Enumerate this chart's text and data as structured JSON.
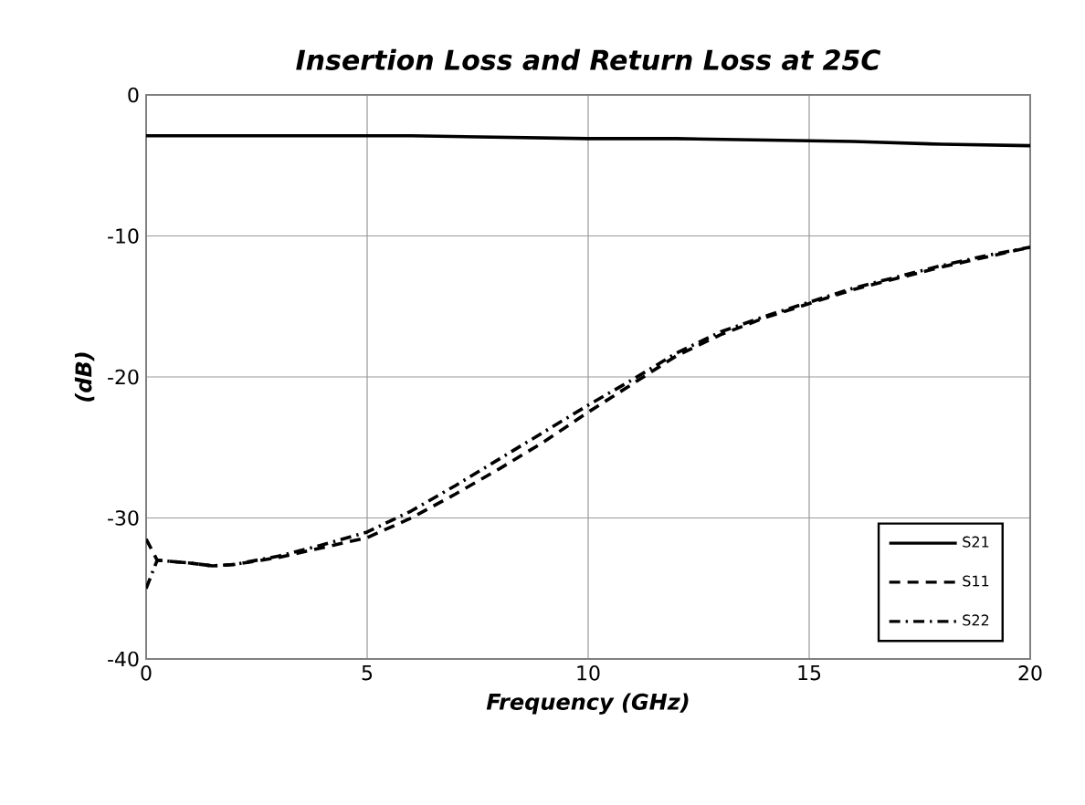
{
  "chart_data": {
    "type": "line",
    "title": "Insertion Loss and Return Loss at 25C",
    "xlabel": "Frequency (GHz)",
    "ylabel": "(dB)",
    "xlim": [
      0,
      20
    ],
    "ylim": [
      -40,
      0
    ],
    "xticks": [
      0,
      5,
      10,
      15,
      20
    ],
    "yticks": [
      -40,
      -30,
      -20,
      -10,
      0
    ],
    "grid": true,
    "legend": "bottom right",
    "series": [
      {
        "name": "S21",
        "color": "#000000",
        "line_style": "solid",
        "x": [
          0,
          2,
          4,
          6,
          8,
          10,
          12,
          14,
          16,
          18,
          20
        ],
        "values": [
          -2.9,
          -2.9,
          -2.9,
          -2.9,
          -3.0,
          -3.1,
          -3.1,
          -3.2,
          -3.3,
          -3.5,
          -3.6
        ]
      },
      {
        "name": "S11",
        "color": "#000000",
        "line_style": "dashed",
        "x": [
          0,
          0.25,
          1,
          1.5,
          2,
          3,
          4,
          5,
          6,
          7,
          8,
          9,
          10,
          11,
          12,
          13,
          14,
          15,
          16,
          17,
          18,
          19,
          20
        ],
        "values": [
          -31.5,
          -33,
          -33.2,
          -33.4,
          -33.3,
          -32.8,
          -32.1,
          -31.4,
          -30,
          -28.3,
          -26.5,
          -24.6,
          -22.5,
          -20.5,
          -18.5,
          -17,
          -15.8,
          -14.8,
          -13.8,
          -13,
          -12.2,
          -11.5,
          -10.8
        ]
      },
      {
        "name": "S22",
        "color": "#000000",
        "line_style": "dashdot",
        "x": [
          0,
          0.25,
          1,
          1.5,
          2,
          3,
          4,
          5,
          6,
          7,
          8,
          9,
          10,
          11,
          12,
          13,
          14,
          15,
          16,
          17,
          18,
          19,
          20
        ],
        "values": [
          -35,
          -33,
          -33.2,
          -33.4,
          -33.3,
          -32.7,
          -31.9,
          -31,
          -29.5,
          -27.7,
          -25.8,
          -23.9,
          -22,
          -20.2,
          -18.3,
          -16.8,
          -15.7,
          -14.7,
          -13.7,
          -12.9,
          -12.1,
          -11.4,
          -10.8
        ]
      }
    ]
  }
}
